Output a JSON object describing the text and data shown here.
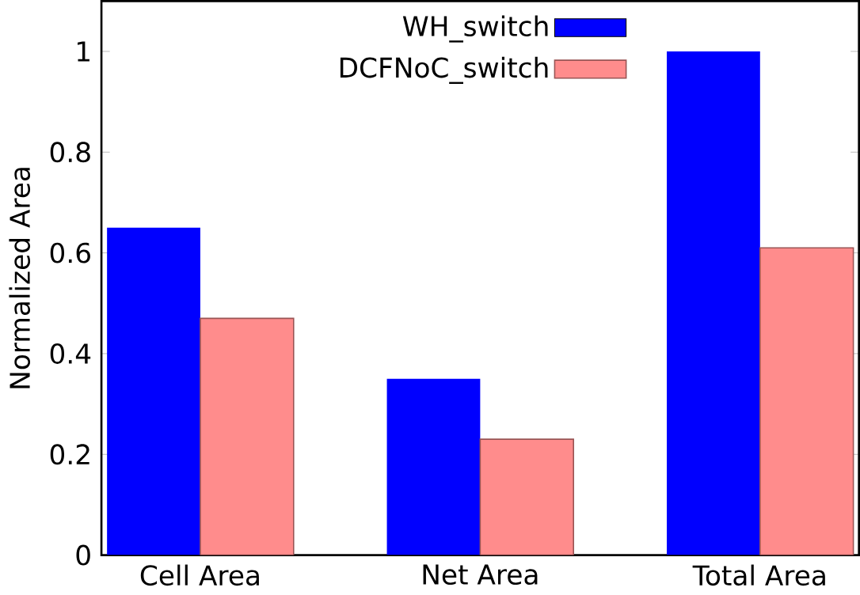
{
  "chart_data": {
    "type": "bar",
    "ylabel": "Normalized Area",
    "categories": [
      "Cell Area",
      "Net Area",
      "Total Area"
    ],
    "series": [
      {
        "name": "WH_switch",
        "color": "#0000ff",
        "values": [
          0.65,
          0.35,
          1.0
        ]
      },
      {
        "name": "DCFNoC_switch",
        "color": "#ff8c8c",
        "values": [
          0.47,
          0.23,
          0.61
        ]
      }
    ],
    "ylim": [
      0,
      1.1
    ],
    "yticks": [
      0,
      0.2,
      0.4,
      0.6,
      0.8,
      1
    ],
    "legend": "top",
    "grid": false
  }
}
